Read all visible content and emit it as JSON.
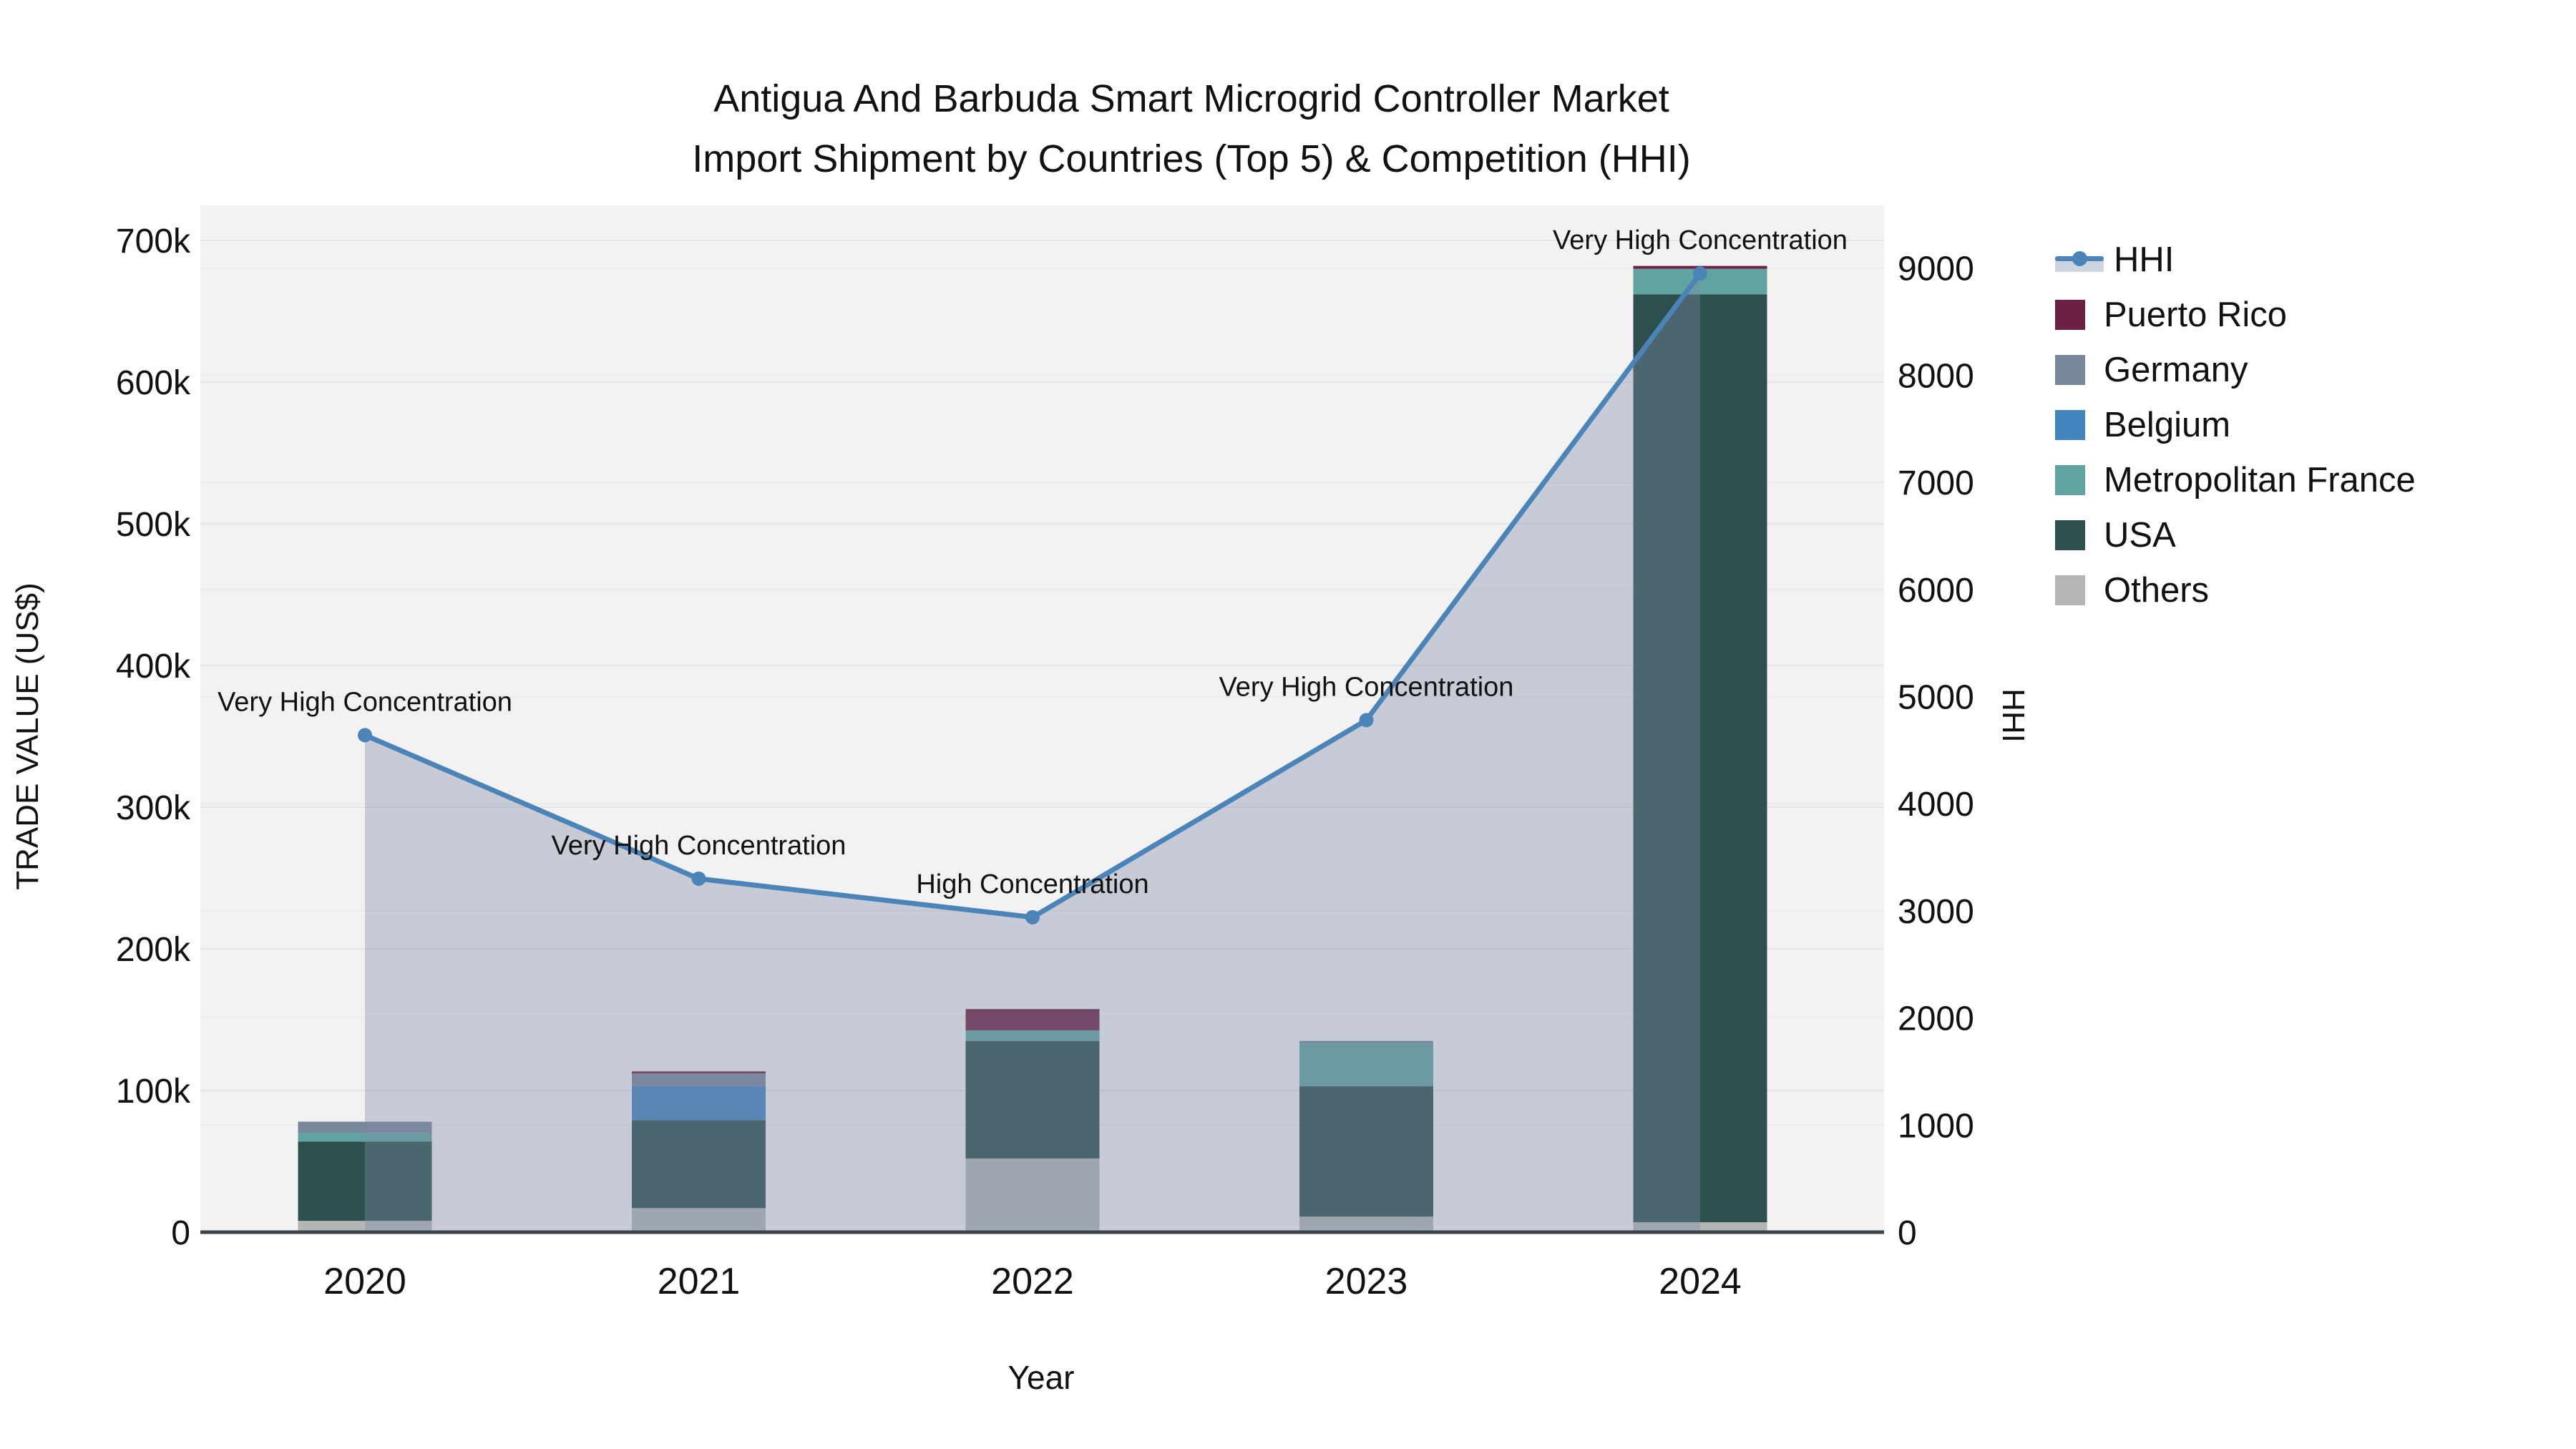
{
  "title": {
    "line1": "Antigua And Barbuda Smart Microgrid Controller Market",
    "line2": "Import Shipment by Countries (Top 5) & Competition (HHI)"
  },
  "chart_data": {
    "type": "bar+line combo (stacked bars, dual y-axis)",
    "title_lines": [
      "Antigua And Barbuda Smart Microgrid Controller Market",
      "Import Shipment by Countries (Top 5) & Competition (HHI)"
    ],
    "x_title": "Year",
    "y_left_title": "TRADE VALUE (US$)",
    "y_right_title": "HHI",
    "categories": [
      "2020",
      "2021",
      "2022",
      "2023",
      "2024"
    ],
    "y_left_axis": {
      "range": [
        0,
        725000
      ],
      "grid": true,
      "ticks": [
        {
          "label": "0",
          "value": 0
        },
        {
          "label": "100k",
          "value": 100000
        },
        {
          "label": "200k",
          "value": 200000
        },
        {
          "label": "300k",
          "value": 300000
        },
        {
          "label": "400k",
          "value": 400000
        },
        {
          "label": "500k",
          "value": 500000
        },
        {
          "label": "600k",
          "value": 600000
        },
        {
          "label": "700k",
          "value": 700000
        }
      ]
    },
    "y_right_axis": {
      "range": [
        0,
        9620
      ],
      "grid": true,
      "ticks": [
        {
          "label": "0",
          "value": 0
        },
        {
          "label": "1000",
          "value": 1000
        },
        {
          "label": "2000",
          "value": 2000
        },
        {
          "label": "3000",
          "value": 3000
        },
        {
          "label": "4000",
          "value": 4000
        },
        {
          "label": "5000",
          "value": 5000
        },
        {
          "label": "6000",
          "value": 6000
        },
        {
          "label": "7000",
          "value": 7000
        },
        {
          "label": "8000",
          "value": 8000
        },
        {
          "label": "9000",
          "value": 9000
        }
      ]
    },
    "bar_series_bottom_to_top": [
      {
        "name": "Others",
        "color": "#B4B6B6",
        "values": [
          8000,
          17000,
          52000,
          11000,
          7000
        ]
      },
      {
        "name": "USA",
        "color": "#2D504C",
        "values": [
          56000,
          62000,
          83000,
          92000,
          655000
        ]
      },
      {
        "name": "Metropolitan France",
        "color": "#61A3A1",
        "values": [
          6000,
          0,
          7500,
          30000,
          18000
        ]
      },
      {
        "name": "Belgium",
        "color": "#4484BE",
        "values": [
          0,
          24000,
          0,
          0,
          0
        ]
      },
      {
        "name": "Germany",
        "color": "#78889B",
        "values": [
          8000,
          9000,
          0,
          2000,
          0
        ]
      },
      {
        "name": "Puerto Rico",
        "color": "#6C2044",
        "values": [
          0,
          1500,
          15000,
          0,
          2000
        ]
      }
    ],
    "bar_totals_usd": [
      78000,
      113500,
      157500,
      135000,
      682000
    ],
    "hhi_line": {
      "name": "HHI",
      "color": "#4A84B8",
      "area_fill": "rgba(125,140,165,0.38)",
      "values": [
        4640,
        3300,
        2940,
        4780,
        8950
      ]
    },
    "annotations": [
      {
        "category": "2020",
        "text": "Very High Concentration"
      },
      {
        "category": "2021",
        "text": "Very High Concentration"
      },
      {
        "category": "2022",
        "text": "High Concentration"
      },
      {
        "category": "2023",
        "text": "Very High Concentration"
      },
      {
        "category": "2024",
        "text": "Very High Concentration"
      }
    ],
    "legend": [
      {
        "label": "HHI",
        "type": "line",
        "color": "#4A84B8",
        "band": "#CED5E0"
      },
      {
        "label": "Puerto Rico",
        "type": "square",
        "color": "#6C2044"
      },
      {
        "label": "Germany",
        "type": "square",
        "color": "#78889B"
      },
      {
        "label": "Belgium",
        "type": "square",
        "color": "#4484BE"
      },
      {
        "label": "Metropolitan France",
        "type": "square",
        "color": "#61A3A1"
      },
      {
        "label": "USA",
        "type": "square",
        "color": "#2D504C"
      },
      {
        "label": "Others",
        "type": "square",
        "color": "#B4B6B6"
      }
    ],
    "layout_hints": {
      "plot_bg": "#f2f2f2",
      "axis_line_color": "#3A434C",
      "gridline_color_left": "#e4e4e4",
      "gridline_color_right": "#ebebeb",
      "legend_position": "right"
    }
  }
}
